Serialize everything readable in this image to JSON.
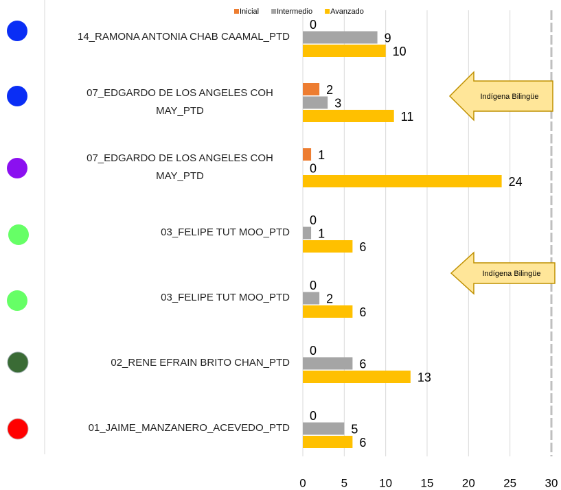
{
  "chart_data": {
    "type": "bar",
    "orientation": "horizontal",
    "categories": [
      "14_RAMONA ANTONIA CHAB CAAMAL_PTD",
      "07_EDGARDO DE LOS ANGELES COH MAY_PTD",
      "07_EDGARDO DE LOS ANGELES COH MAY_PTD",
      "03_FELIPE TUT MOO_PTD",
      "03_FELIPE TUT MOO_PTD",
      "02_RENE EFRAIN BRITO CHAN_PTD",
      "01_JAIME_MANZANERO_ACEVEDO_PTD"
    ],
    "series": [
      {
        "name": "Inicial",
        "color": "#ED7D31",
        "values": [
          0,
          2,
          1,
          0,
          0,
          0,
          0
        ]
      },
      {
        "name": "Intermedio",
        "color": "#A5A5A5",
        "values": [
          9,
          3,
          0,
          1,
          2,
          6,
          5
        ]
      },
      {
        "name": "Avanzado",
        "color": "#FFC000",
        "values": [
          10,
          11,
          24,
          6,
          6,
          13,
          6
        ]
      }
    ],
    "xlim": [
      0,
      30
    ],
    "xticks": [
      0,
      5,
      10,
      15,
      20,
      25,
      30
    ],
    "grid": true,
    "legend": "top",
    "annotations": [
      "Indígena Bilingüe",
      "Indígena Bilingüe"
    ]
  }
}
